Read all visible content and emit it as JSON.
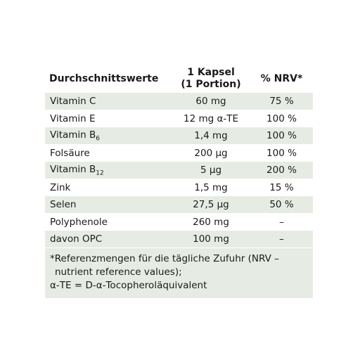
{
  "header": {
    "col1": "Durchschnittswerte",
    "col2_line1": "1 Kapsel",
    "col2_line2": "(1 Portion)",
    "col3": "% NRV*"
  },
  "rows": [
    {
      "name": "Vitamin C",
      "sub": "",
      "amount": "60 mg",
      "nrv": "75 %",
      "shaded": true
    },
    {
      "name": "Vitamin E",
      "sub": "",
      "amount": "12 mg α-TE",
      "nrv": "100 %",
      "shaded": false
    },
    {
      "name": "Vitamin B",
      "sub": "6",
      "amount": "1,4 mg",
      "nrv": "100 %",
      "shaded": true
    },
    {
      "name": "Folsäure",
      "sub": "",
      "amount": "200 µg",
      "nrv": "100 %",
      "shaded": false
    },
    {
      "name": "Vitamin B",
      "sub": "12",
      "amount": "5 µg",
      "nrv": "200 %",
      "shaded": true
    },
    {
      "name": "Zink",
      "sub": "",
      "amount": "1,5 mg",
      "nrv": "15 %",
      "shaded": false
    },
    {
      "name": "Selen",
      "sub": "",
      "amount": "27,5 µg",
      "nrv": "50 %",
      "shaded": true
    },
    {
      "name": "Polyphenole",
      "sub": "",
      "amount": "260 mg",
      "nrv": "–",
      "shaded": false
    },
    {
      "name": "davon OPC",
      "sub": "",
      "amount": "100 mg",
      "nrv": "–",
      "shaded": true
    }
  ],
  "footnote": {
    "line1": "*Referenzmengen für die tägliche Zufuhr (NRV –",
    "line2": "nutrient reference values);",
    "line3": "α-TE = D-α-Tocopheroläquivalent"
  },
  "colors": {
    "shade": "#e6ece3",
    "text": "#1a1a1a"
  }
}
